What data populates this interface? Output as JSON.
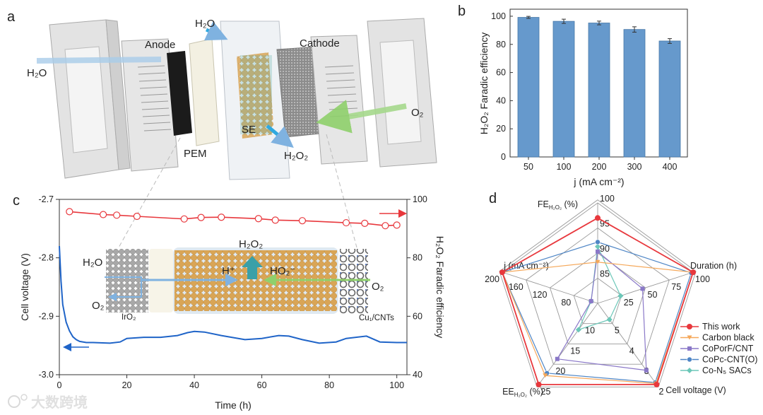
{
  "panels": {
    "a": "a",
    "b": "b",
    "c": "c",
    "d": "d"
  },
  "panel_a": {
    "labels": {
      "h2o_left": "H₂O",
      "anode": "Anode",
      "h2o_top": "H₂O",
      "pem": "PEM",
      "se": "SE",
      "h2o2": "H₂O₂",
      "cathode": "Cathode",
      "o2": "O₂"
    },
    "colors": {
      "water_arrow": "#a9cdea",
      "h2o2_arrow": "#2fa9e0",
      "o2_arrow": "#a6d98c"
    }
  },
  "chart_data": [
    {
      "id": "b",
      "type": "bar",
      "title": "",
      "categories": [
        "50",
        "100",
        "200",
        "300",
        "400"
      ],
      "values": [
        99.2,
        96.4,
        95.2,
        90.6,
        82.4
      ],
      "errors": [
        0.7,
        1.5,
        1.3,
        1.9,
        1.7
      ],
      "xlabel": "j (mA cm⁻²)",
      "ylabel": "H₂O₂ Faradic efficiency",
      "ylim": [
        0,
        105
      ],
      "yticks": [
        "0",
        "20",
        "40",
        "60",
        "80",
        "100"
      ],
      "bar_color": "#6699cc"
    },
    {
      "id": "c",
      "type": "line",
      "xlabel": "Time (h)",
      "ylabel_left": "Cell voltage (V)",
      "ylabel_right": "H₂O₂ Faradic efficiency",
      "xlim": [
        0,
        103
      ],
      "ylim_left": [
        -3.0,
        -2.7
      ],
      "ylim_right": [
        40,
        100
      ],
      "xticks": [
        "0",
        "20",
        "40",
        "60",
        "80",
        "100"
      ],
      "yticks_left": [
        "-3.0",
        "-2.9",
        "-2.8",
        "-2.7"
      ],
      "yticks_right": [
        "40",
        "60",
        "80",
        "100"
      ],
      "series": [
        {
          "name": "Faradic efficiency",
          "axis": "right",
          "color": "#e8383d",
          "x": [
            3,
            13,
            17,
            23,
            37,
            42,
            48,
            59,
            64,
            72,
            85,
            90.5,
            96.6,
            100
          ],
          "y": [
            95.8,
            94.8,
            94.6,
            94.2,
            93.3,
            93.8,
            93.9,
            93.4,
            92.9,
            92.7,
            92.0,
            91.8,
            91.0,
            91.2
          ]
        },
        {
          "name": "Cell voltage",
          "axis": "left",
          "color": "#1f64c8",
          "x": [
            0,
            0.5,
            1,
            2,
            3,
            4,
            5,
            6,
            8,
            10,
            15,
            18,
            20,
            25,
            30,
            35,
            38,
            40,
            43,
            48,
            55,
            60,
            65,
            68,
            72,
            77,
            82,
            85,
            91,
            95,
            100,
            103
          ],
          "y": [
            -2.78,
            -2.84,
            -2.88,
            -2.91,
            -2.925,
            -2.935,
            -2.94,
            -2.943,
            -2.945,
            -2.945,
            -2.946,
            -2.944,
            -2.938,
            -2.936,
            -2.936,
            -2.933,
            -2.928,
            -2.926,
            -2.927,
            -2.933,
            -2.94,
            -2.938,
            -2.933,
            -2.934,
            -2.94,
            -2.946,
            -2.944,
            -2.938,
            -2.934,
            -2.944,
            -2.945,
            -2.945
          ]
        }
      ],
      "inset": {
        "h2o": "H₂O",
        "o2_left": "O₂",
        "iro2": "IrO₂",
        "h2o2": "H₂O₂",
        "h_plus": "H⁺",
        "ho2_minus": "HO₂⁻",
        "o2_right": "O₂",
        "cu_cnts": "Cu₁/CNTs"
      }
    },
    {
      "id": "d",
      "type": "radar",
      "axes": [
        {
          "name": "FE",
          "sub": "H₂O₂",
          "suffix": " (%)",
          "range": [
            80,
            100
          ],
          "ticks": [
            "85",
            "90",
            "95",
            "100"
          ]
        },
        {
          "name": "Duration (h)",
          "sub": "",
          "suffix": "",
          "range": [
            0,
            100
          ],
          "ticks": [
            "25",
            "50",
            "75",
            "100"
          ]
        },
        {
          "name": "Cell voltage (V)",
          "sub": "",
          "suffix": "",
          "range": [
            6,
            2
          ],
          "ticks": [
            "5",
            "4",
            "3",
            "2"
          ]
        },
        {
          "name": "EE",
          "sub": "H₂O₂",
          "suffix": " (%)",
          "range": [
            5,
            25
          ],
          "ticks": [
            "10",
            "15",
            "20",
            "25"
          ]
        },
        {
          "name": "j (mA cm⁻²)",
          "sub": "",
          "suffix": "",
          "range": [
            40,
            200
          ],
          "ticks": [
            "80",
            "120",
            "160",
            "200"
          ]
        }
      ],
      "series": [
        {
          "name": "This work",
          "color": "#e8383d",
          "marker": "circle",
          "values": [
            97,
            100,
            2.0,
            25,
            200
          ]
        },
        {
          "name": "Carbon black",
          "color": "#f5a85a",
          "marker": "triangle-down",
          "values": [
            88.2,
            100,
            2.05,
            22.8,
            200
          ]
        },
        {
          "name": "CoPorF/CNT",
          "color": "#8a78c8",
          "marker": "square",
          "values": [
            90.3,
            47,
            2.7,
            18.7,
            51
          ]
        },
        {
          "name": "CoPc-CNT(O)",
          "color": "#4f86c6",
          "marker": "half-circle",
          "values": [
            92.2,
            98,
            2.1,
            22.2,
            200
          ]
        },
        {
          "name": "Co-N₅ SACs",
          "color": "#6cc7b8",
          "marker": "diamond",
          "values": [
            91.3,
            24,
            5.2,
            11.5,
            51
          ]
        }
      ],
      "legend": "right"
    }
  ],
  "watermark": "大数跨境"
}
